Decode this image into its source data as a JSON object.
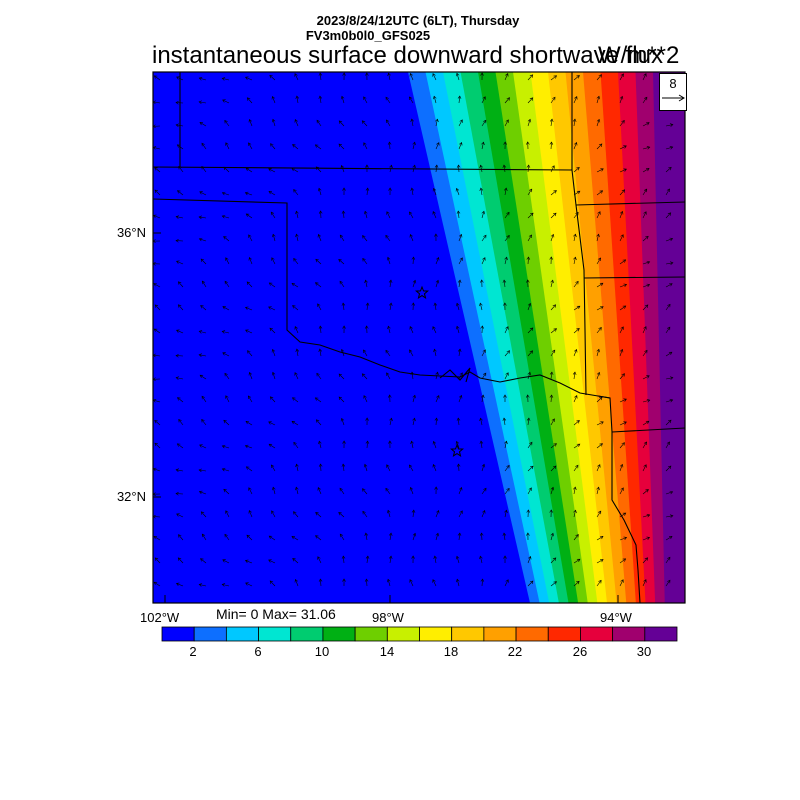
{
  "header": {
    "date_line": "2023/8/24/12UTC (6LT), Thursday",
    "model_line": "FV3m0b0l0_GFS025",
    "title": "instantaneous surface downward shortwave flux",
    "units": "W/m**2"
  },
  "vector_ref": {
    "value": "8"
  },
  "stats": {
    "text": "Min= 0 Max= 31.06",
    "min": 0,
    "max": 31.06
  },
  "axes": {
    "lat_labels": [
      "36°N",
      "32°N"
    ],
    "lon_labels": [
      "102°W",
      "98°W",
      "94°W"
    ]
  },
  "colorbar": {
    "colors": [
      "#0000ff",
      "#0d6fff",
      "#00c8ff",
      "#00e6d2",
      "#00cc70",
      "#00b014",
      "#6ecf00",
      "#c8f000",
      "#ffee00",
      "#ffc800",
      "#ffa000",
      "#ff6a00",
      "#ff2800",
      "#e6003c",
      "#a0006e",
      "#640096"
    ],
    "labels": [
      "2",
      "6",
      "10",
      "14",
      "18",
      "22",
      "26",
      "30"
    ]
  },
  "chart_data": {
    "type": "heatmap",
    "title": "instantaneous surface downward shortwave flux",
    "units": "W/m**2",
    "lat_ticks": [
      "36°N",
      "32°N"
    ],
    "lon_ticks": [
      "102°W",
      "98°W",
      "94°W"
    ],
    "min": 0,
    "max": 31.06,
    "levels": [
      2,
      4,
      6,
      8,
      10,
      12,
      14,
      16,
      18,
      20,
      22,
      24,
      26,
      28,
      30
    ],
    "pattern": "values increase from west (0) to east (~31) with a NNE-oriented gradient across eastern Oklahoma/Texas",
    "markers": [
      "star near Oklahoma City",
      "star near Dallas-Fort Worth"
    ],
    "overlay": "wind vectors"
  }
}
